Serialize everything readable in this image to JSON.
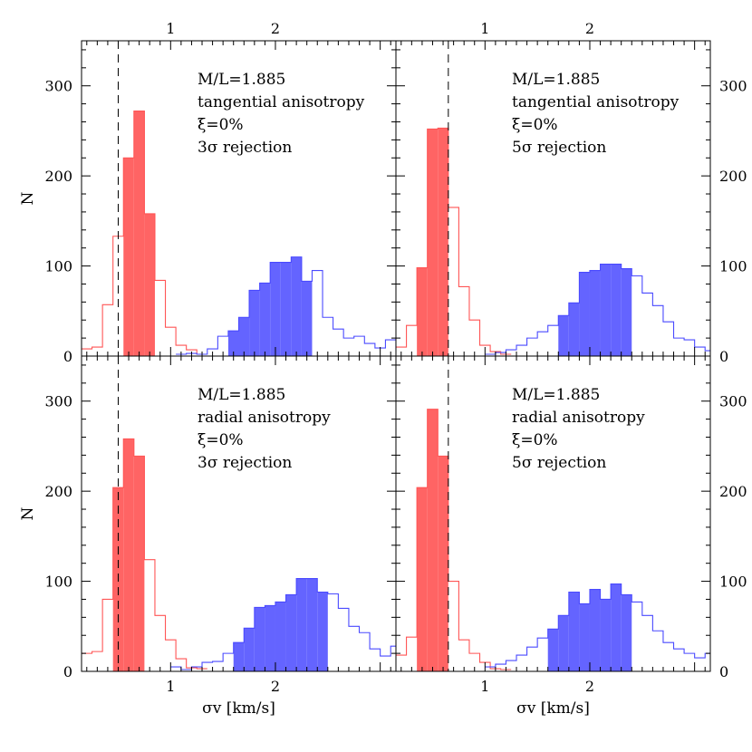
{
  "chart_data": {
    "type": "histogram-grid",
    "shared_xlabel": "σv [km/s]",
    "shared_ylabel": "N",
    "xlim": [
      0.15,
      3.15
    ],
    "ylim": [
      0,
      350
    ],
    "xticks_labeled": [
      1,
      2
    ],
    "yticks_labeled": [
      0,
      100,
      200,
      300
    ],
    "colors": {
      "red": "#ff5555",
      "red_fill": "#ff6464",
      "blue": "#4a4aff",
      "blue_fill": "#6464ff",
      "dashed": "#000000"
    },
    "panels": [
      {
        "id": "top-left",
        "annotation": [
          "M/L=1.885",
          "tangential anisotropy",
          "ξ=0%",
          "3σ rejection"
        ],
        "dashed_x": 0.5,
        "red": {
          "x0": 0.15,
          "bin": 0.1,
          "counts": [
            8,
            10,
            57,
            133,
            220,
            272,
            158,
            84,
            32,
            12,
            7,
            2
          ],
          "filled_range": [
            0.55,
            0.85
          ]
        },
        "blue": {
          "x0": 1.05,
          "bin": 0.1,
          "counts": [
            2,
            3,
            2,
            8,
            22,
            28,
            43,
            73,
            81,
            104,
            104,
            110,
            83,
            95,
            43,
            30,
            20,
            22,
            14,
            9,
            18,
            7
          ],
          "filled_range": [
            1.6,
            2.35
          ]
        }
      },
      {
        "id": "top-right",
        "annotation": [
          "M/L=1.885",
          "tangential anisotropy",
          "ξ=0%",
          "5σ rejection"
        ],
        "dashed_x": 0.65,
        "red": {
          "x0": 0.15,
          "bin": 0.1,
          "counts": [
            10,
            34,
            98,
            252,
            253,
            165,
            77,
            40,
            12,
            5,
            2
          ],
          "filled_range": [
            0.35,
            0.65
          ]
        },
        "blue": {
          "x0": 1.0,
          "bin": 0.1,
          "counts": [
            2,
            4,
            7,
            12,
            20,
            27,
            34,
            45,
            59,
            93,
            95,
            102,
            102,
            97,
            89,
            70,
            56,
            38,
            20,
            18,
            10,
            6
          ],
          "filled_range": [
            1.75,
            2.35
          ]
        }
      },
      {
        "id": "bottom-left",
        "annotation": [
          "M/L=1.885",
          "radial anisotropy",
          "ξ=0%",
          "3σ rejection"
        ],
        "dashed_x": 0.5,
        "red": {
          "x0": 0.15,
          "bin": 0.1,
          "counts": [
            20,
            22,
            80,
            204,
            258,
            239,
            124,
            62,
            35,
            14,
            4,
            3
          ],
          "filled_range": [
            0.45,
            0.75
          ]
        },
        "blue": {
          "x0": 1.0,
          "bin": 0.1,
          "counts": [
            5,
            2,
            5,
            10,
            11,
            20,
            32,
            48,
            71,
            73,
            77,
            85,
            103,
            103,
            88,
            86,
            70,
            50,
            43,
            25,
            17,
            28
          ],
          "filled_range": [
            1.6,
            2.45
          ]
        }
      },
      {
        "id": "bottom-right",
        "annotation": [
          "M/L=1.885",
          "radial anisotropy",
          "ξ=0%",
          "5σ rejection"
        ],
        "dashed_x": 0.65,
        "red": {
          "x0": 0.15,
          "bin": 0.1,
          "counts": [
            18,
            38,
            204,
            291,
            239,
            100,
            35,
            20,
            10,
            3,
            2
          ],
          "filled_range": [
            0.35,
            0.65
          ]
        },
        "blue": {
          "x0": 1.0,
          "bin": 0.1,
          "counts": [
            5,
            8,
            12,
            18,
            27,
            37,
            47,
            62,
            88,
            75,
            91,
            80,
            97,
            85,
            77,
            62,
            45,
            32,
            25,
            20,
            15,
            20
          ],
          "filled_range": [
            1.6,
            2.35
          ]
        }
      }
    ]
  }
}
